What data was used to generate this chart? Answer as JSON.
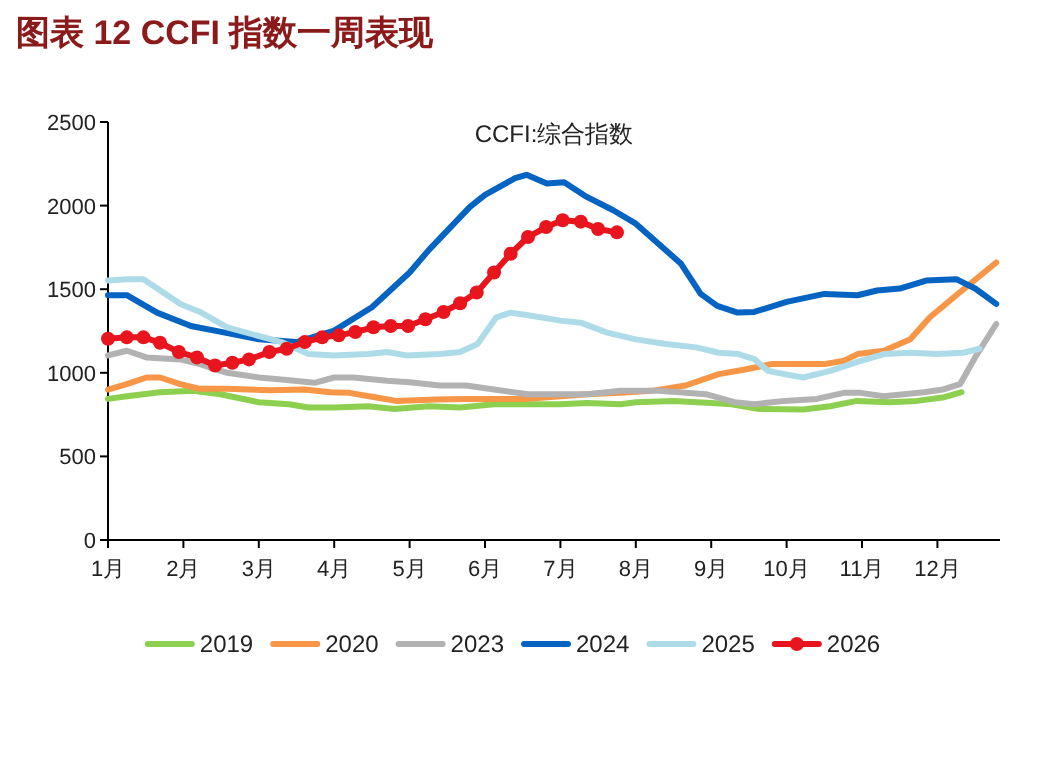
{
  "chart_data": {
    "type": "line",
    "title": "图表 12 CCFI 指数一周表现",
    "subtitle": "CCFI:综合指数",
    "xlim": [
      1,
      12.83
    ],
    "xticks": [
      {
        "value": 1,
        "label": "1月"
      },
      {
        "value": 2,
        "label": "2月"
      },
      {
        "value": 3,
        "label": "3月"
      },
      {
        "value": 4,
        "label": "4月"
      },
      {
        "value": 5,
        "label": "5月"
      },
      {
        "value": 6,
        "label": "6月"
      },
      {
        "value": 7,
        "label": "7月"
      },
      {
        "value": 8,
        "label": "8月"
      },
      {
        "value": 9,
        "label": "9月"
      },
      {
        "value": 10,
        "label": "10月"
      },
      {
        "value": 11,
        "label": "11月"
      },
      {
        "value": 12,
        "label": "12月"
      }
    ],
    "ylim": [
      0,
      2500
    ],
    "yticks": [
      0,
      500,
      1000,
      1500,
      2000,
      2500
    ],
    "grid": false,
    "legend": "bottom",
    "series": [
      {
        "name": "2019",
        "color": "#8dcf4f",
        "x": [
          1.0,
          1.25,
          1.69,
          2.13,
          2.49,
          3.0,
          3.4,
          3.66,
          4.0,
          4.45,
          4.8,
          5.25,
          5.67,
          6.12,
          6.57,
          7.0,
          7.35,
          7.8,
          8.0,
          8.5,
          9.0,
          9.27,
          9.62,
          10.22,
          10.58,
          10.93,
          11.37,
          11.73,
          12.07,
          12.32
        ],
        "values": [
          844,
          860,
          884,
          892,
          872,
          824,
          812,
          792,
          792,
          800,
          784,
          800,
          792,
          812,
          812,
          812,
          820,
          812,
          824,
          832,
          820,
          812,
          784,
          780,
          800,
          832,
          824,
          832,
          852,
          884
        ]
      },
      {
        "name": "2020",
        "color": "#f79646",
        "x": [
          1.0,
          1.25,
          1.51,
          1.69,
          1.96,
          2.22,
          2.58,
          3.15,
          3.6,
          3.95,
          4.2,
          4.56,
          4.82,
          5.35,
          5.8,
          6.57,
          7.0,
          7.35,
          7.8,
          8.21,
          8.66,
          9.1,
          9.45,
          9.8,
          10.5,
          10.76,
          10.94,
          11.29,
          11.64,
          11.9,
          12.25,
          12.78
        ],
        "values": [
          900,
          932,
          972,
          972,
          932,
          904,
          904,
          896,
          900,
          884,
          880,
          852,
          832,
          840,
          844,
          844,
          860,
          872,
          880,
          892,
          924,
          992,
          1020,
          1052,
          1052,
          1072,
          1112,
          1132,
          1200,
          1332,
          1464,
          1660
        ]
      },
      {
        "name": "2023",
        "color": "#b2b2b2",
        "x": [
          1.0,
          1.25,
          1.51,
          1.96,
          2.22,
          2.58,
          3.0,
          3.3,
          3.74,
          4.0,
          4.26,
          4.7,
          5.0,
          5.4,
          5.75,
          6.12,
          6.57,
          7.0,
          7.35,
          7.8,
          8.3,
          8.66,
          8.93,
          9.31,
          9.57,
          9.97,
          10.4,
          10.76,
          10.98,
          11.29,
          11.82,
          12.07,
          12.3,
          12.5,
          12.78
        ],
        "values": [
          1104,
          1132,
          1092,
          1080,
          1052,
          1000,
          972,
          960,
          940,
          972,
          972,
          952,
          944,
          924,
          924,
          900,
          872,
          872,
          872,
          892,
          892,
          880,
          872,
          824,
          812,
          832,
          844,
          880,
          880,
          860,
          884,
          900,
          932,
          1092,
          1292
        ]
      },
      {
        "name": "2024",
        "color": "#0563c1",
        "x": [
          1.0,
          1.25,
          1.65,
          2.1,
          2.55,
          3.0,
          3.5,
          4.0,
          4.5,
          5.0,
          5.25,
          5.8,
          6.0,
          6.4,
          6.55,
          6.82,
          7.05,
          7.35,
          7.7,
          8.0,
          8.3,
          8.6,
          8.86,
          9.08,
          9.35,
          9.57,
          10.0,
          10.5,
          10.94,
          11.2,
          11.5,
          11.85,
          12.25,
          12.5,
          12.78
        ],
        "values": [
          1464,
          1464,
          1360,
          1280,
          1240,
          1200,
          1184,
          1252,
          1392,
          1600,
          1732,
          1992,
          2064,
          2164,
          2184,
          2132,
          2140,
          2052,
          1972,
          1892,
          1772,
          1652,
          1472,
          1400,
          1360,
          1364,
          1424,
          1472,
          1464,
          1492,
          1504,
          1552,
          1560,
          1504,
          1412
        ]
      },
      {
        "name": "2025",
        "color": "#aedbe8",
        "x": [
          1.0,
          1.25,
          1.47,
          1.96,
          2.22,
          2.58,
          3.0,
          3.3,
          3.66,
          4.0,
          4.45,
          4.7,
          4.96,
          5.4,
          5.67,
          5.9,
          6.15,
          6.34,
          6.57,
          7.0,
          7.27,
          7.62,
          8.0,
          8.4,
          8.8,
          9.1,
          9.36,
          9.58,
          9.75,
          9.97,
          10.22,
          10.58,
          10.93,
          11.29,
          11.64,
          12.0,
          12.34,
          12.56
        ],
        "values": [
          1552,
          1560,
          1560,
          1412,
          1364,
          1272,
          1220,
          1184,
          1112,
          1104,
          1112,
          1124,
          1104,
          1112,
          1124,
          1172,
          1332,
          1360,
          1344,
          1312,
          1300,
          1240,
          1200,
          1172,
          1152,
          1120,
          1112,
          1080,
          1012,
          992,
          972,
          1012,
          1064,
          1112,
          1120,
          1112,
          1120,
          1144
        ]
      },
      {
        "name": "2026",
        "color": "#e8141e",
        "marker": "circle",
        "x": [
          1.0,
          1.25,
          1.47,
          1.69,
          1.94,
          2.18,
          2.42,
          2.65,
          2.87,
          3.14,
          3.37,
          3.61,
          3.84,
          4.06,
          4.28,
          4.52,
          4.75,
          4.98,
          5.21,
          5.45,
          5.67,
          5.89,
          6.12,
          6.34,
          6.57,
          6.81,
          7.03,
          7.27,
          7.5,
          7.75
        ],
        "values": [
          1204,
          1212,
          1212,
          1180,
          1124,
          1092,
          1044,
          1060,
          1080,
          1124,
          1144,
          1184,
          1212,
          1224,
          1244,
          1272,
          1280,
          1280,
          1320,
          1364,
          1416,
          1480,
          1600,
          1712,
          1812,
          1872,
          1912,
          1904,
          1860,
          1840
        ]
      }
    ]
  }
}
